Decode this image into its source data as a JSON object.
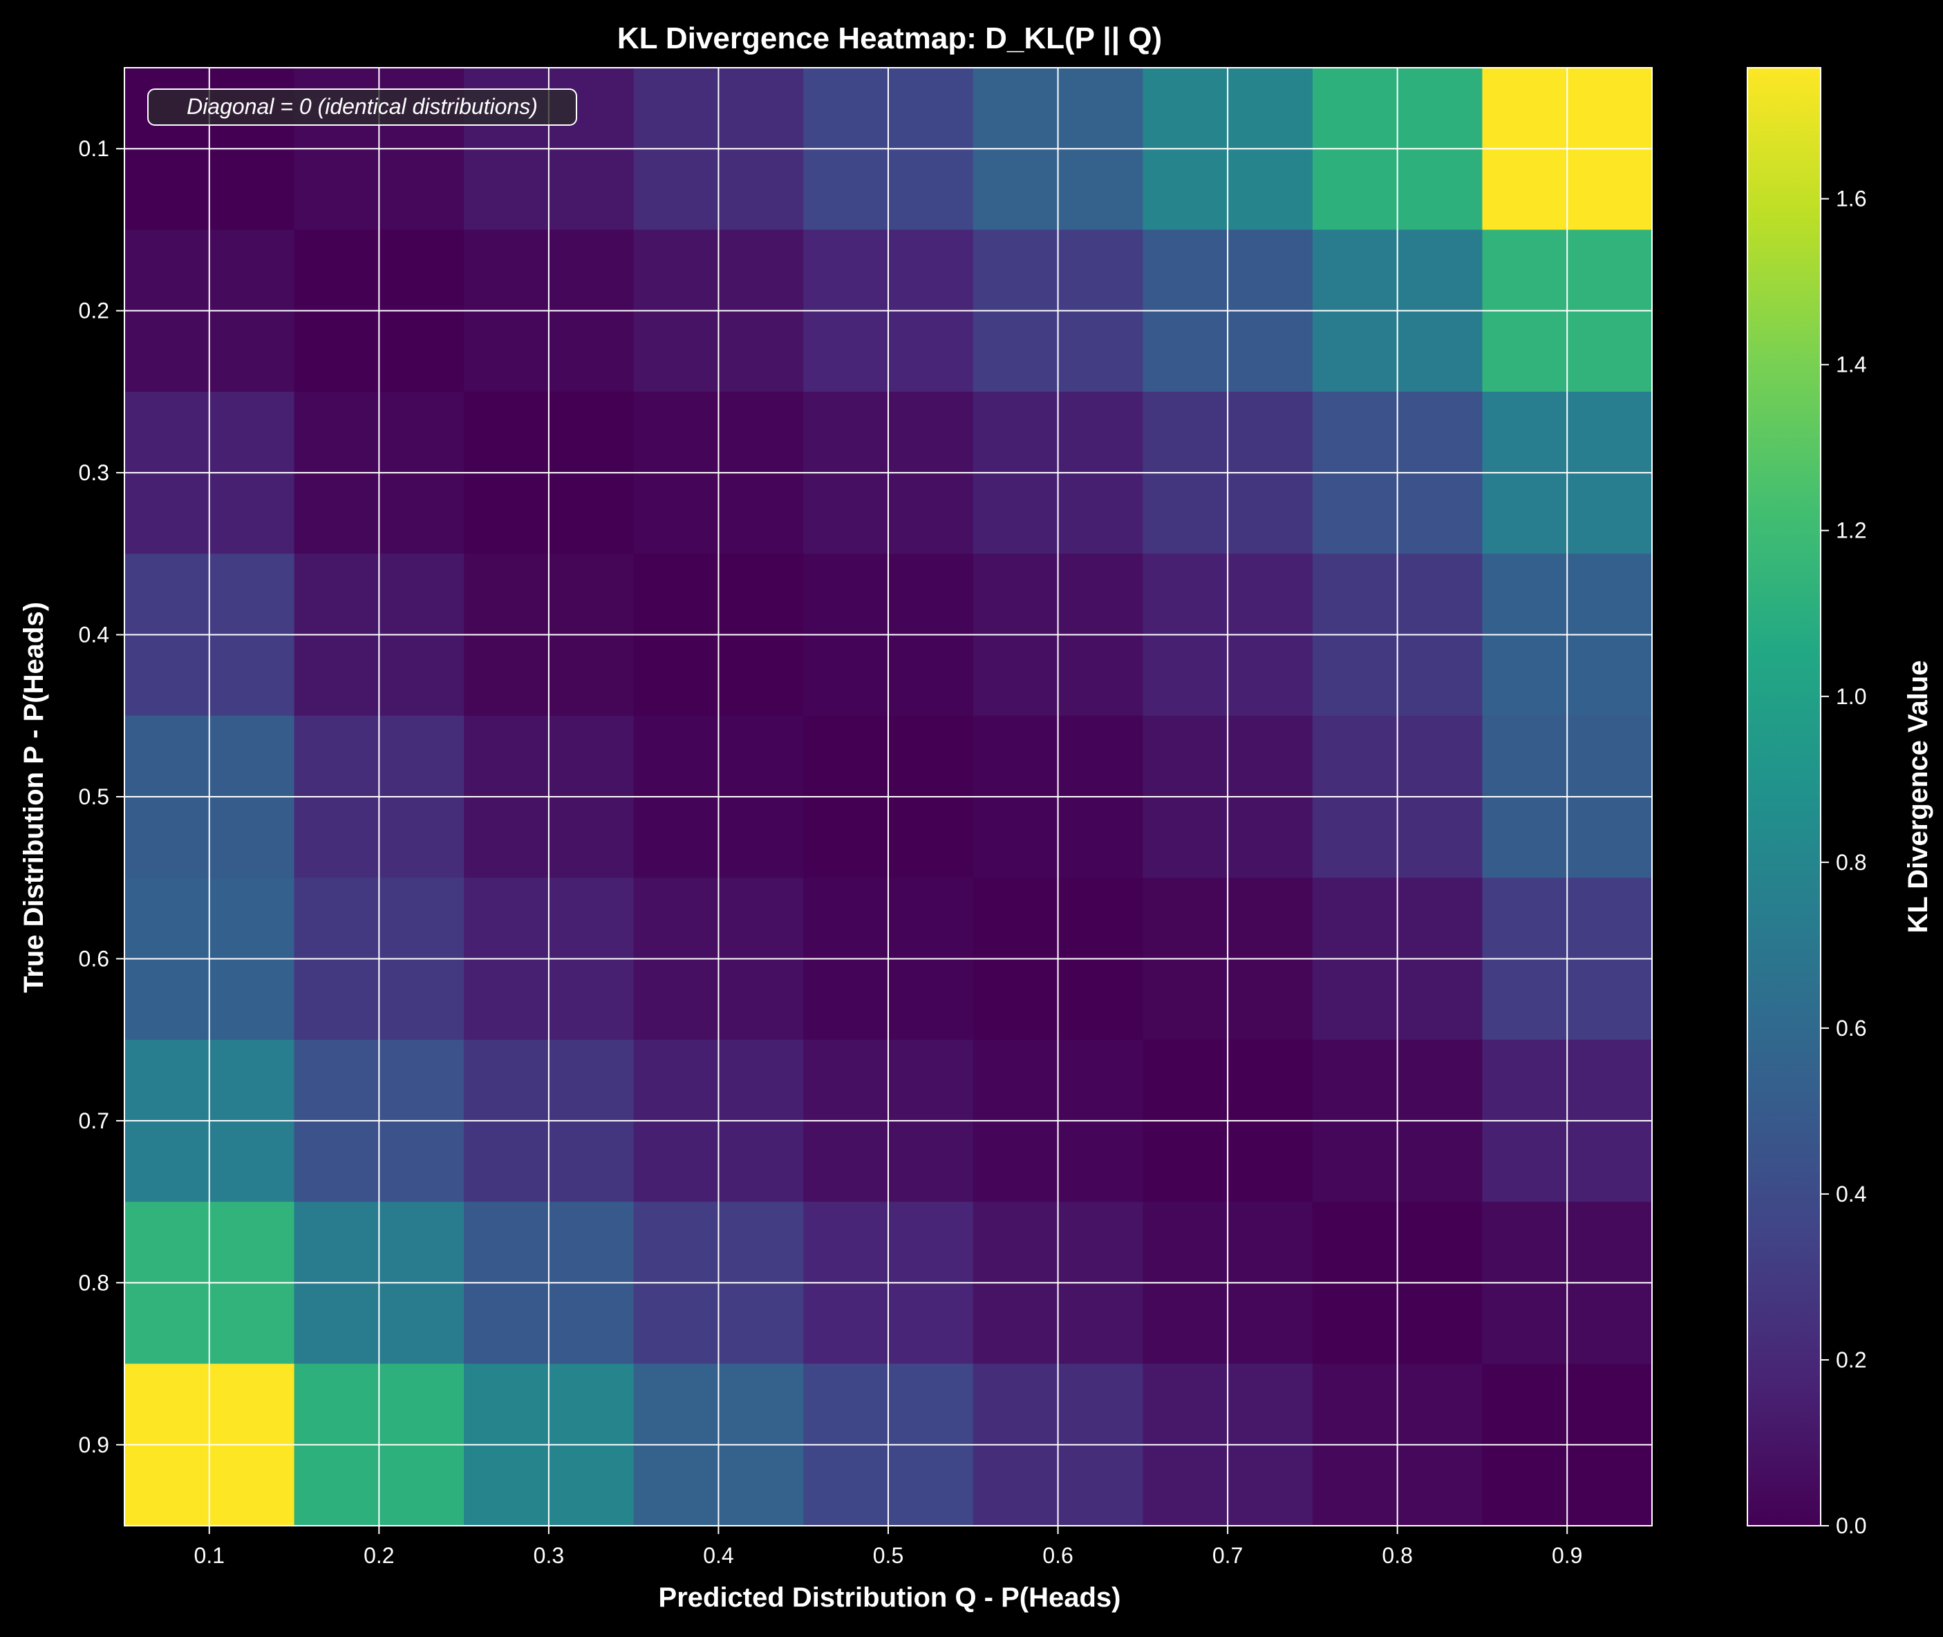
{
  "chart_data": {
    "type": "heatmap",
    "title": "KL Divergence Heatmap: D_KL(P || Q)",
    "xlabel": "Predicted Distribution Q - P(Heads)",
    "ylabel": "True Distribution P - P(Heads)",
    "x": [
      0.1,
      0.2,
      0.3,
      0.4,
      0.5,
      0.6,
      0.7,
      0.8,
      0.9
    ],
    "y": [
      0.1,
      0.2,
      0.3,
      0.4,
      0.5,
      0.6,
      0.7,
      0.8,
      0.9
    ],
    "x_tick_labels": [
      "0.1",
      "0.2",
      "0.3",
      "0.4",
      "0.5",
      "0.6",
      "0.7",
      "0.8",
      "0.9"
    ],
    "y_tick_labels": [
      "0.1",
      "0.2",
      "0.3",
      "0.4",
      "0.5",
      "0.6",
      "0.7",
      "0.8",
      "0.9"
    ],
    "values": [
      [
        0.0,
        0.037,
        0.118,
        0.226,
        0.368,
        0.551,
        0.789,
        1.115,
        1.758
      ],
      [
        0.044,
        0.0,
        0.028,
        0.09,
        0.184,
        0.313,
        0.487,
        0.733,
        1.136
      ],
      [
        0.154,
        0.031,
        0.0,
        0.022,
        0.072,
        0.153,
        0.27,
        0.441,
        0.74
      ],
      [
        0.311,
        0.108,
        0.023,
        0.0,
        0.02,
        0.07,
        0.156,
        0.29,
        0.536
      ],
      [
        0.511,
        0.223,
        0.087,
        0.02,
        0.0,
        0.02,
        0.087,
        0.223,
        0.511
      ],
      [
        0.536,
        0.29,
        0.156,
        0.07,
        0.02,
        0.0,
        0.023,
        0.108,
        0.311
      ],
      [
        0.74,
        0.441,
        0.27,
        0.153,
        0.072,
        0.022,
        0.0,
        0.031,
        0.154
      ],
      [
        1.136,
        0.733,
        0.487,
        0.313,
        0.184,
        0.09,
        0.028,
        0.0,
        0.044
      ],
      [
        1.758,
        1.115,
        0.789,
        0.551,
        0.368,
        0.226,
        0.118,
        0.037,
        0.0
      ]
    ],
    "colorscale": "viridis",
    "vmin": 0,
    "vmax": 1.758,
    "colorbar": {
      "label": "KL Divergence Value",
      "ticks": [
        0.0,
        0.2,
        0.4,
        0.6,
        0.8,
        1.0,
        1.2,
        1.4,
        1.6
      ],
      "tick_labels": [
        "0.0",
        "0.2",
        "0.4",
        "0.6",
        "0.8",
        "1.0",
        "1.2",
        "1.4",
        "1.6"
      ]
    },
    "annotation": "Diagonal = 0 (identical distributions)",
    "grid": true,
    "colors": {
      "background": "#000000",
      "text": "#ffffff",
      "grid": "#ffffff"
    }
  }
}
